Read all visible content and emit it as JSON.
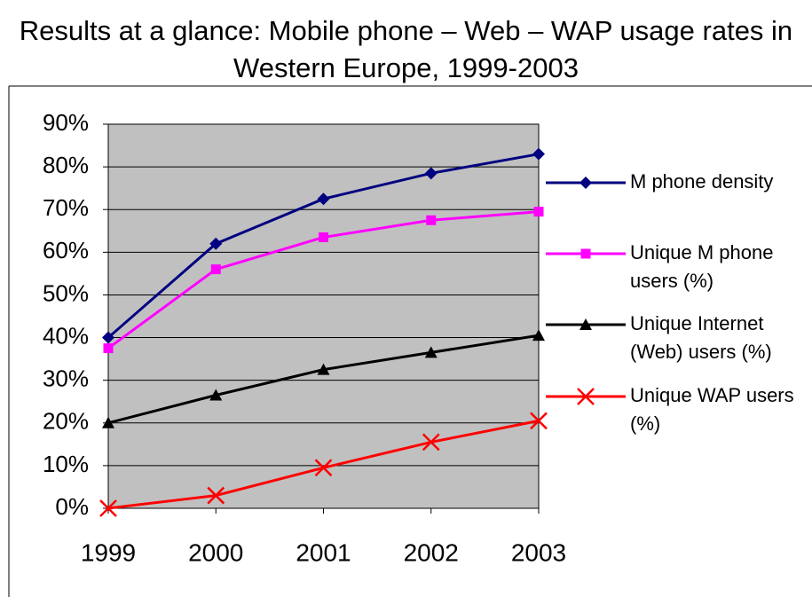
{
  "chart_data": {
    "type": "line",
    "title": "Results at a glance: Mobile phone – Web – WAP usage rates in Western Europe, 1999-2003",
    "categories": [
      "1999",
      "2000",
      "2001",
      "2002",
      "2003"
    ],
    "series": [
      {
        "name": "M phone density",
        "color": "#000080",
        "marker": "diamond",
        "values": [
          40,
          62,
          72.5,
          78.5,
          83
        ]
      },
      {
        "name": "Unique M phone users (%)",
        "color": "#ff00ff",
        "marker": "square",
        "values": [
          37.5,
          56,
          63.5,
          67.5,
          69.5
        ]
      },
      {
        "name": "Unique Internet (Web) users (%)",
        "color": "#000000",
        "marker": "triangle",
        "values": [
          20,
          26.5,
          32.5,
          36.5,
          40.5
        ]
      },
      {
        "name": "Unique WAP users (%)",
        "color": "#ff0000",
        "marker": "x",
        "values": [
          0,
          3,
          9.5,
          15.5,
          20.5
        ]
      }
    ],
    "ylim": [
      0,
      90
    ],
    "yticks": [
      {
        "value": 0,
        "label": "0%"
      },
      {
        "value": 10,
        "label": "10%"
      },
      {
        "value": 20,
        "label": "20%"
      },
      {
        "value": 30,
        "label": "30%"
      },
      {
        "value": 40,
        "label": "40%"
      },
      {
        "value": 50,
        "label": "50%"
      },
      {
        "value": 60,
        "label": "60%"
      },
      {
        "value": 70,
        "label": "70%"
      },
      {
        "value": 80,
        "label": "80%"
      },
      {
        "value": 90,
        "label": "90%"
      }
    ],
    "grid": true,
    "legend": "right",
    "plot_background": "#c0c0c0"
  }
}
